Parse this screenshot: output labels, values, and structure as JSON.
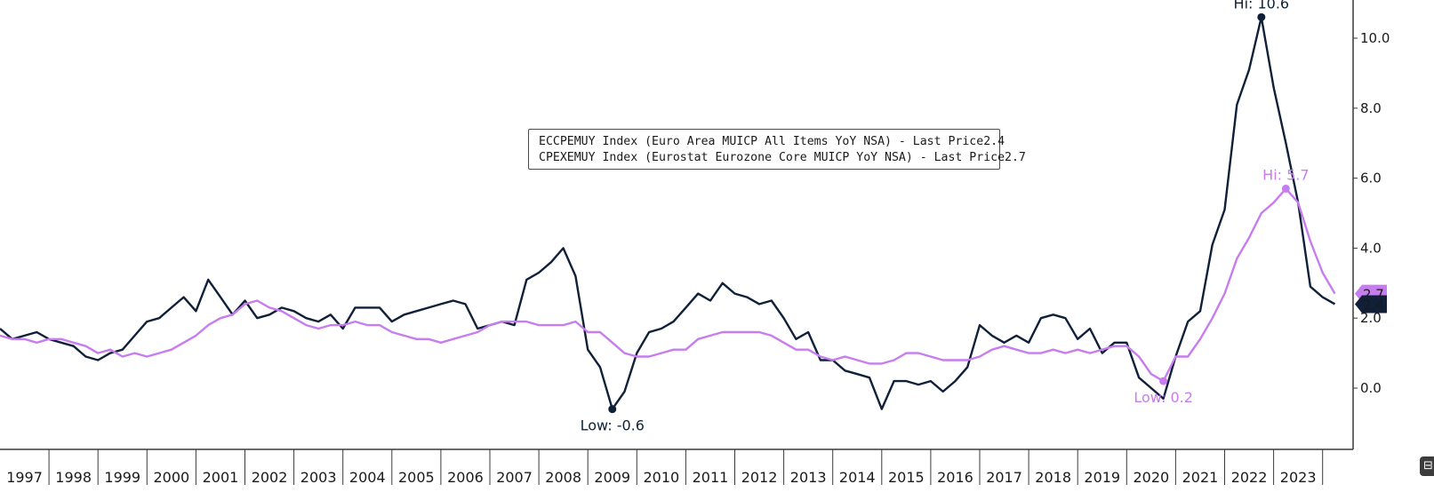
{
  "chart_data": {
    "type": "line",
    "x_labels": [
      "1997",
      "1998",
      "1999",
      "2000",
      "2001",
      "2002",
      "2003",
      "2004",
      "2005",
      "2006",
      "2007",
      "2008",
      "2009",
      "2010",
      "2011",
      "2012",
      "2013",
      "2014",
      "2015",
      "2016",
      "2017",
      "2018",
      "2019",
      "2020",
      "2021",
      "2022",
      "2023"
    ],
    "y_ticks": [
      "0.0",
      "2.0",
      "4.0",
      "6.0",
      "8.0",
      "10.0"
    ],
    "ylim": [
      -1.7,
      11.1
    ],
    "xlim": [
      1997.0,
      2024.25
    ],
    "grid": false,
    "legend_position": "center-top",
    "series": [
      {
        "legend": "ECCPEMUY Index (Euro Area MUICP All Items YoY NSA) - Last Price",
        "last_value": "2.4",
        "color": "#0f2038",
        "points": [
          [
            1997.0,
            1.7
          ],
          [
            1997.25,
            1.4
          ],
          [
            1997.5,
            1.5
          ],
          [
            1997.75,
            1.6
          ],
          [
            1998.0,
            1.4
          ],
          [
            1998.25,
            1.3
          ],
          [
            1998.5,
            1.2
          ],
          [
            1998.75,
            0.9
          ],
          [
            1999.0,
            0.8
          ],
          [
            1999.25,
            1.0
          ],
          [
            1999.5,
            1.1
          ],
          [
            1999.75,
            1.5
          ],
          [
            2000.0,
            1.9
          ],
          [
            2000.25,
            2.0
          ],
          [
            2000.5,
            2.3
          ],
          [
            2000.75,
            2.6
          ],
          [
            2001.0,
            2.2
          ],
          [
            2001.25,
            3.1
          ],
          [
            2001.5,
            2.6
          ],
          [
            2001.75,
            2.1
          ],
          [
            2002.0,
            2.5
          ],
          [
            2002.25,
            2.0
          ],
          [
            2002.5,
            2.1
          ],
          [
            2002.75,
            2.3
          ],
          [
            2003.0,
            2.2
          ],
          [
            2003.25,
            2.0
          ],
          [
            2003.5,
            1.9
          ],
          [
            2003.75,
            2.1
          ],
          [
            2004.0,
            1.7
          ],
          [
            2004.25,
            2.3
          ],
          [
            2004.5,
            2.3
          ],
          [
            2004.75,
            2.3
          ],
          [
            2005.0,
            1.9
          ],
          [
            2005.25,
            2.1
          ],
          [
            2005.5,
            2.2
          ],
          [
            2005.75,
            2.3
          ],
          [
            2006.0,
            2.4
          ],
          [
            2006.25,
            2.5
          ],
          [
            2006.5,
            2.4
          ],
          [
            2006.75,
            1.7
          ],
          [
            2007.0,
            1.8
          ],
          [
            2007.25,
            1.9
          ],
          [
            2007.5,
            1.8
          ],
          [
            2007.75,
            3.1
          ],
          [
            2008.0,
            3.3
          ],
          [
            2008.25,
            3.6
          ],
          [
            2008.5,
            4.0
          ],
          [
            2008.75,
            3.2
          ],
          [
            2009.0,
            1.1
          ],
          [
            2009.25,
            0.6
          ],
          [
            2009.5,
            -0.6
          ],
          [
            2009.75,
            -0.1
          ],
          [
            2010.0,
            1.0
          ],
          [
            2010.25,
            1.6
          ],
          [
            2010.5,
            1.7
          ],
          [
            2010.75,
            1.9
          ],
          [
            2011.0,
            2.3
          ],
          [
            2011.25,
            2.7
          ],
          [
            2011.5,
            2.5
          ],
          [
            2011.75,
            3.0
          ],
          [
            2012.0,
            2.7
          ],
          [
            2012.25,
            2.6
          ],
          [
            2012.5,
            2.4
          ],
          [
            2012.75,
            2.5
          ],
          [
            2013.0,
            2.0
          ],
          [
            2013.25,
            1.4
          ],
          [
            2013.5,
            1.6
          ],
          [
            2013.75,
            0.8
          ],
          [
            2014.0,
            0.8
          ],
          [
            2014.25,
            0.5
          ],
          [
            2014.5,
            0.4
          ],
          [
            2014.75,
            0.3
          ],
          [
            2015.0,
            -0.6
          ],
          [
            2015.25,
            0.2
          ],
          [
            2015.5,
            0.2
          ],
          [
            2015.75,
            0.1
          ],
          [
            2016.0,
            0.2
          ],
          [
            2016.25,
            -0.1
          ],
          [
            2016.5,
            0.2
          ],
          [
            2016.75,
            0.6
          ],
          [
            2017.0,
            1.8
          ],
          [
            2017.25,
            1.5
          ],
          [
            2017.5,
            1.3
          ],
          [
            2017.75,
            1.5
          ],
          [
            2018.0,
            1.3
          ],
          [
            2018.25,
            2.0
          ],
          [
            2018.5,
            2.1
          ],
          [
            2018.75,
            2.0
          ],
          [
            2019.0,
            1.4
          ],
          [
            2019.25,
            1.7
          ],
          [
            2019.5,
            1.0
          ],
          [
            2019.75,
            1.3
          ],
          [
            2020.0,
            1.3
          ],
          [
            2020.25,
            0.3
          ],
          [
            2020.5,
            0.0
          ],
          [
            2020.75,
            -0.3
          ],
          [
            2021.0,
            0.9
          ],
          [
            2021.25,
            1.9
          ],
          [
            2021.5,
            2.2
          ],
          [
            2021.75,
            4.1
          ],
          [
            2022.0,
            5.1
          ],
          [
            2022.25,
            8.1
          ],
          [
            2022.5,
            9.1
          ],
          [
            2022.75,
            10.6
          ],
          [
            2023.0,
            8.6
          ],
          [
            2023.25,
            7.0
          ],
          [
            2023.5,
            5.3
          ],
          [
            2023.75,
            2.9
          ],
          [
            2024.0,
            2.6
          ],
          [
            2024.25,
            2.4
          ]
        ]
      },
      {
        "legend": "CPEXEMUY Index (Eurostat Eurozone Core MUICP YoY NSA) - Last Price",
        "last_value": "2.7",
        "color": "#c77cf0",
        "points": [
          [
            1997.0,
            1.5
          ],
          [
            1997.25,
            1.4
          ],
          [
            1997.5,
            1.4
          ],
          [
            1997.75,
            1.3
          ],
          [
            1998.0,
            1.4
          ],
          [
            1998.25,
            1.4
          ],
          [
            1998.5,
            1.3
          ],
          [
            1998.75,
            1.2
          ],
          [
            1999.0,
            1.0
          ],
          [
            1999.25,
            1.1
          ],
          [
            1999.5,
            0.9
          ],
          [
            1999.75,
            1.0
          ],
          [
            2000.0,
            0.9
          ],
          [
            2000.25,
            1.0
          ],
          [
            2000.5,
            1.1
          ],
          [
            2000.75,
            1.3
          ],
          [
            2001.0,
            1.5
          ],
          [
            2001.25,
            1.8
          ],
          [
            2001.5,
            2.0
          ],
          [
            2001.75,
            2.1
          ],
          [
            2002.0,
            2.4
          ],
          [
            2002.25,
            2.5
          ],
          [
            2002.5,
            2.3
          ],
          [
            2002.75,
            2.2
          ],
          [
            2003.0,
            2.0
          ],
          [
            2003.25,
            1.8
          ],
          [
            2003.5,
            1.7
          ],
          [
            2003.75,
            1.8
          ],
          [
            2004.0,
            1.8
          ],
          [
            2004.25,
            1.9
          ],
          [
            2004.5,
            1.8
          ],
          [
            2004.75,
            1.8
          ],
          [
            2005.0,
            1.6
          ],
          [
            2005.25,
            1.5
          ],
          [
            2005.5,
            1.4
          ],
          [
            2005.75,
            1.4
          ],
          [
            2006.0,
            1.3
          ],
          [
            2006.25,
            1.4
          ],
          [
            2006.5,
            1.5
          ],
          [
            2006.75,
            1.6
          ],
          [
            2007.0,
            1.8
          ],
          [
            2007.25,
            1.9
          ],
          [
            2007.5,
            1.9
          ],
          [
            2007.75,
            1.9
          ],
          [
            2008.0,
            1.8
          ],
          [
            2008.25,
            1.8
          ],
          [
            2008.5,
            1.8
          ],
          [
            2008.75,
            1.9
          ],
          [
            2009.0,
            1.6
          ],
          [
            2009.25,
            1.6
          ],
          [
            2009.5,
            1.3
          ],
          [
            2009.75,
            1.0
          ],
          [
            2010.0,
            0.9
          ],
          [
            2010.25,
            0.9
          ],
          [
            2010.5,
            1.0
          ],
          [
            2010.75,
            1.1
          ],
          [
            2011.0,
            1.1
          ],
          [
            2011.25,
            1.4
          ],
          [
            2011.5,
            1.5
          ],
          [
            2011.75,
            1.6
          ],
          [
            2012.0,
            1.6
          ],
          [
            2012.25,
            1.6
          ],
          [
            2012.5,
            1.6
          ],
          [
            2012.75,
            1.5
          ],
          [
            2013.0,
            1.3
          ],
          [
            2013.25,
            1.1
          ],
          [
            2013.5,
            1.1
          ],
          [
            2013.75,
            0.9
          ],
          [
            2014.0,
            0.8
          ],
          [
            2014.25,
            0.9
          ],
          [
            2014.5,
            0.8
          ],
          [
            2014.75,
            0.7
          ],
          [
            2015.0,
            0.7
          ],
          [
            2015.25,
            0.8
          ],
          [
            2015.5,
            1.0
          ],
          [
            2015.75,
            1.0
          ],
          [
            2016.0,
            0.9
          ],
          [
            2016.25,
            0.8
          ],
          [
            2016.5,
            0.8
          ],
          [
            2016.75,
            0.8
          ],
          [
            2017.0,
            0.9
          ],
          [
            2017.25,
            1.1
          ],
          [
            2017.5,
            1.2
          ],
          [
            2017.75,
            1.1
          ],
          [
            2018.0,
            1.0
          ],
          [
            2018.25,
            1.0
          ],
          [
            2018.5,
            1.1
          ],
          [
            2018.75,
            1.0
          ],
          [
            2019.0,
            1.1
          ],
          [
            2019.25,
            1.0
          ],
          [
            2019.5,
            1.1
          ],
          [
            2019.75,
            1.2
          ],
          [
            2020.0,
            1.2
          ],
          [
            2020.25,
            0.9
          ],
          [
            2020.5,
            0.4
          ],
          [
            2020.75,
            0.2
          ],
          [
            2021.0,
            0.9
          ],
          [
            2021.25,
            0.9
          ],
          [
            2021.5,
            1.4
          ],
          [
            2021.75,
            2.0
          ],
          [
            2022.0,
            2.7
          ],
          [
            2022.25,
            3.7
          ],
          [
            2022.5,
            4.3
          ],
          [
            2022.75,
            5.0
          ],
          [
            2023.0,
            5.3
          ],
          [
            2023.25,
            5.7
          ],
          [
            2023.5,
            5.3
          ],
          [
            2023.75,
            4.2
          ],
          [
            2024.0,
            3.3
          ],
          [
            2024.25,
            2.7
          ]
        ]
      }
    ],
    "annotations": [
      {
        "label": "Hi: 10.6",
        "x": 2022.75,
        "y": 10.6,
        "series": 0
      },
      {
        "label": "Low: -0.6",
        "x": 2009.5,
        "y": -0.6,
        "series": 0
      },
      {
        "label": "Hi: 5.7",
        "x": 2023.25,
        "y": 5.7,
        "series": 1
      },
      {
        "label": "Low: 0.2",
        "x": 2020.75,
        "y": 0.2,
        "series": 1
      }
    ]
  },
  "corner_button": {
    "icon": "export-icon",
    "glyph": "⊟"
  }
}
